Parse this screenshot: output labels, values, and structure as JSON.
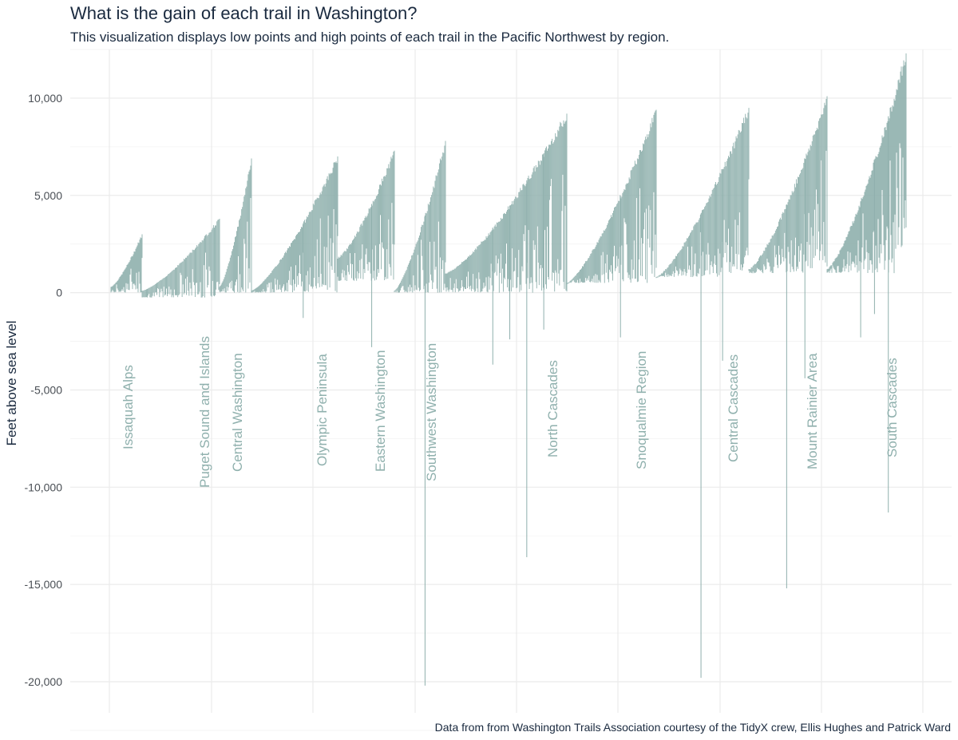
{
  "chart_data": {
    "type": "bar",
    "title": "What is the gain of each trail in Washington?",
    "subtitle": "This visualization displays low points and high points of each trail in the Pacific Northwest by region.",
    "caption": "Data from from Washington Trails Association courtesy of the TidyX crew, Ellis Hughes and Patrick Ward",
    "ylabel": "Feet above sea level",
    "xlabel": "",
    "ylim": [
      -21000,
      12800
    ],
    "y_ticks": [
      10000,
      5000,
      0,
      -5000,
      -10000,
      -15000,
      -20000
    ],
    "y_tick_labels": [
      "10,000",
      "5,000",
      "0",
      "-5,000",
      "-10,000",
      "-15,000",
      "-20,000"
    ],
    "grid": true,
    "legend": "none",
    "bar_color": "#8fb0ad",
    "grid_color": "#ebebeb",
    "regions": [
      {
        "name": "Issaquah Alps",
        "high_start": 300,
        "high_end": 3000,
        "low_base": 0,
        "n": 40,
        "spikes": []
      },
      {
        "name": "Puget Sound and Islands",
        "high_start": 100,
        "high_end": 3800,
        "low_base": -250,
        "n": 90,
        "spikes": []
      },
      {
        "name": "Central Washington",
        "high_start": 300,
        "high_end": 6900,
        "low_base": 0,
        "n": 40,
        "spikes": []
      },
      {
        "name": "Olympic Peninsula",
        "high_start": 100,
        "high_end": 7000,
        "low_base": 0,
        "n": 110,
        "spikes": [
          -1300
        ]
      },
      {
        "name": "Eastern Washington",
        "high_start": 1800,
        "high_end": 7300,
        "low_base": 600,
        "n": 70,
        "spikes": [
          -2800
        ]
      },
      {
        "name": "Southwest Washington",
        "high_start": 100,
        "high_end": 7800,
        "low_base": 0,
        "n": 60,
        "spikes": [
          -20200
        ]
      },
      {
        "name": "North Cascades",
        "high_start": 1000,
        "high_end": 9200,
        "low_base": 0,
        "n": 150,
        "spikes": [
          -3700,
          -2400,
          -13600,
          -1900
        ]
      },
      {
        "name": "Snoqualmie Region",
        "high_start": 500,
        "high_end": 9400,
        "low_base": 500,
        "n": 110,
        "spikes": [
          -2300
        ]
      },
      {
        "name": "Central Cascades",
        "high_start": 800,
        "high_end": 9500,
        "low_base": 800,
        "n": 110,
        "spikes": [
          -19800,
          -3500
        ]
      },
      {
        "name": "Mount Rainier Area",
        "high_start": 1200,
        "high_end": 10100,
        "low_base": 1000,
        "n": 95,
        "spikes": [
          -15200,
          -4400
        ]
      },
      {
        "name": "South Cascades",
        "high_start": 1200,
        "high_end": 12300,
        "low_base": 1000,
        "n": 100,
        "spikes": [
          -2300,
          -1100,
          -11300
        ]
      }
    ]
  }
}
